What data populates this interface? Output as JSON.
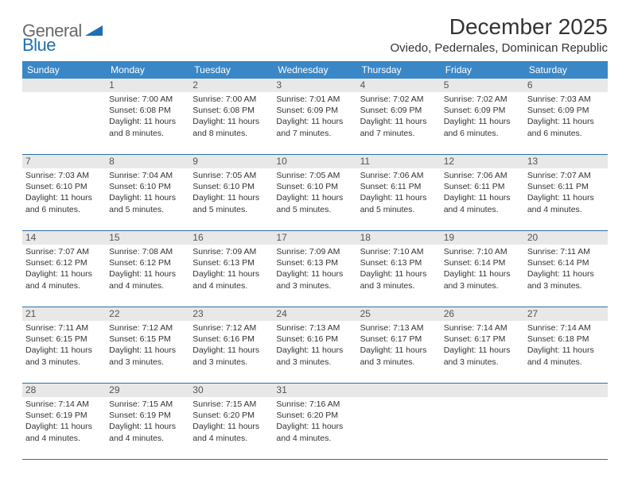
{
  "logo": {
    "word1": "General",
    "word2": "Blue"
  },
  "title": "December 2025",
  "location": "Oviedo, Pedernales, Dominican Republic",
  "colors": {
    "header_bg": "#3a87c8",
    "header_text": "#ffffff",
    "daynum_bg": "#e8e8e8",
    "rule": "#2f6ea8",
    "logo_gray": "#6a6a6a",
    "logo_blue": "#1f6fb2"
  },
  "day_headers": [
    "Sunday",
    "Monday",
    "Tuesday",
    "Wednesday",
    "Thursday",
    "Friday",
    "Saturday"
  ],
  "weeks": [
    [
      {
        "num": "",
        "lines": []
      },
      {
        "num": "1",
        "lines": [
          "Sunrise: 7:00 AM",
          "Sunset: 6:08 PM",
          "Daylight: 11 hours and 8 minutes."
        ]
      },
      {
        "num": "2",
        "lines": [
          "Sunrise: 7:00 AM",
          "Sunset: 6:08 PM",
          "Daylight: 11 hours and 8 minutes."
        ]
      },
      {
        "num": "3",
        "lines": [
          "Sunrise: 7:01 AM",
          "Sunset: 6:09 PM",
          "Daylight: 11 hours and 7 minutes."
        ]
      },
      {
        "num": "4",
        "lines": [
          "Sunrise: 7:02 AM",
          "Sunset: 6:09 PM",
          "Daylight: 11 hours and 7 minutes."
        ]
      },
      {
        "num": "5",
        "lines": [
          "Sunrise: 7:02 AM",
          "Sunset: 6:09 PM",
          "Daylight: 11 hours and 6 minutes."
        ]
      },
      {
        "num": "6",
        "lines": [
          "Sunrise: 7:03 AM",
          "Sunset: 6:09 PM",
          "Daylight: 11 hours and 6 minutes."
        ]
      }
    ],
    [
      {
        "num": "7",
        "lines": [
          "Sunrise: 7:03 AM",
          "Sunset: 6:10 PM",
          "Daylight: 11 hours and 6 minutes."
        ]
      },
      {
        "num": "8",
        "lines": [
          "Sunrise: 7:04 AM",
          "Sunset: 6:10 PM",
          "Daylight: 11 hours and 5 minutes."
        ]
      },
      {
        "num": "9",
        "lines": [
          "Sunrise: 7:05 AM",
          "Sunset: 6:10 PM",
          "Daylight: 11 hours and 5 minutes."
        ]
      },
      {
        "num": "10",
        "lines": [
          "Sunrise: 7:05 AM",
          "Sunset: 6:10 PM",
          "Daylight: 11 hours and 5 minutes."
        ]
      },
      {
        "num": "11",
        "lines": [
          "Sunrise: 7:06 AM",
          "Sunset: 6:11 PM",
          "Daylight: 11 hours and 5 minutes."
        ]
      },
      {
        "num": "12",
        "lines": [
          "Sunrise: 7:06 AM",
          "Sunset: 6:11 PM",
          "Daylight: 11 hours and 4 minutes."
        ]
      },
      {
        "num": "13",
        "lines": [
          "Sunrise: 7:07 AM",
          "Sunset: 6:11 PM",
          "Daylight: 11 hours and 4 minutes."
        ]
      }
    ],
    [
      {
        "num": "14",
        "lines": [
          "Sunrise: 7:07 AM",
          "Sunset: 6:12 PM",
          "Daylight: 11 hours and 4 minutes."
        ]
      },
      {
        "num": "15",
        "lines": [
          "Sunrise: 7:08 AM",
          "Sunset: 6:12 PM",
          "Daylight: 11 hours and 4 minutes."
        ]
      },
      {
        "num": "16",
        "lines": [
          "Sunrise: 7:09 AM",
          "Sunset: 6:13 PM",
          "Daylight: 11 hours and 4 minutes."
        ]
      },
      {
        "num": "17",
        "lines": [
          "Sunrise: 7:09 AM",
          "Sunset: 6:13 PM",
          "Daylight: 11 hours and 3 minutes."
        ]
      },
      {
        "num": "18",
        "lines": [
          "Sunrise: 7:10 AM",
          "Sunset: 6:13 PM",
          "Daylight: 11 hours and 3 minutes."
        ]
      },
      {
        "num": "19",
        "lines": [
          "Sunrise: 7:10 AM",
          "Sunset: 6:14 PM",
          "Daylight: 11 hours and 3 minutes."
        ]
      },
      {
        "num": "20",
        "lines": [
          "Sunrise: 7:11 AM",
          "Sunset: 6:14 PM",
          "Daylight: 11 hours and 3 minutes."
        ]
      }
    ],
    [
      {
        "num": "21",
        "lines": [
          "Sunrise: 7:11 AM",
          "Sunset: 6:15 PM",
          "Daylight: 11 hours and 3 minutes."
        ]
      },
      {
        "num": "22",
        "lines": [
          "Sunrise: 7:12 AM",
          "Sunset: 6:15 PM",
          "Daylight: 11 hours and 3 minutes."
        ]
      },
      {
        "num": "23",
        "lines": [
          "Sunrise: 7:12 AM",
          "Sunset: 6:16 PM",
          "Daylight: 11 hours and 3 minutes."
        ]
      },
      {
        "num": "24",
        "lines": [
          "Sunrise: 7:13 AM",
          "Sunset: 6:16 PM",
          "Daylight: 11 hours and 3 minutes."
        ]
      },
      {
        "num": "25",
        "lines": [
          "Sunrise: 7:13 AM",
          "Sunset: 6:17 PM",
          "Daylight: 11 hours and 3 minutes."
        ]
      },
      {
        "num": "26",
        "lines": [
          "Sunrise: 7:14 AM",
          "Sunset: 6:17 PM",
          "Daylight: 11 hours and 3 minutes."
        ]
      },
      {
        "num": "27",
        "lines": [
          "Sunrise: 7:14 AM",
          "Sunset: 6:18 PM",
          "Daylight: 11 hours and 4 minutes."
        ]
      }
    ],
    [
      {
        "num": "28",
        "lines": [
          "Sunrise: 7:14 AM",
          "Sunset: 6:19 PM",
          "Daylight: 11 hours and 4 minutes."
        ]
      },
      {
        "num": "29",
        "lines": [
          "Sunrise: 7:15 AM",
          "Sunset: 6:19 PM",
          "Daylight: 11 hours and 4 minutes."
        ]
      },
      {
        "num": "30",
        "lines": [
          "Sunrise: 7:15 AM",
          "Sunset: 6:20 PM",
          "Daylight: 11 hours and 4 minutes."
        ]
      },
      {
        "num": "31",
        "lines": [
          "Sunrise: 7:16 AM",
          "Sunset: 6:20 PM",
          "Daylight: 11 hours and 4 minutes."
        ]
      },
      {
        "num": "",
        "lines": []
      },
      {
        "num": "",
        "lines": []
      },
      {
        "num": "",
        "lines": []
      }
    ]
  ]
}
